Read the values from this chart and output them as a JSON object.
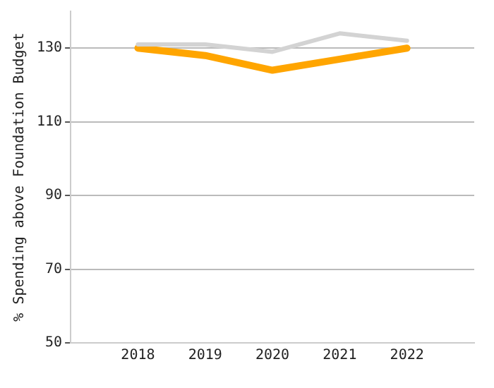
{
  "chart_data": {
    "type": "line",
    "ylabel": "% Spending above Foundation Budget",
    "x": [
      2018,
      2019,
      2020,
      2021,
      2022
    ],
    "xlim": [
      2017,
      2023
    ],
    "xticks": [
      2018,
      2019,
      2020,
      2021,
      2022
    ],
    "ylim": [
      50,
      140
    ],
    "yticks": [
      50,
      70,
      90,
      110,
      130
    ],
    "grid": "y",
    "legend": false,
    "marker": "none",
    "line_style": "solid",
    "series": [
      {
        "color": "#d3d3d3",
        "values": [
          131,
          131,
          129,
          134,
          132
        ]
      },
      {
        "color": "#ffa500",
        "values": [
          130,
          128,
          124,
          127,
          130
        ]
      }
    ]
  }
}
